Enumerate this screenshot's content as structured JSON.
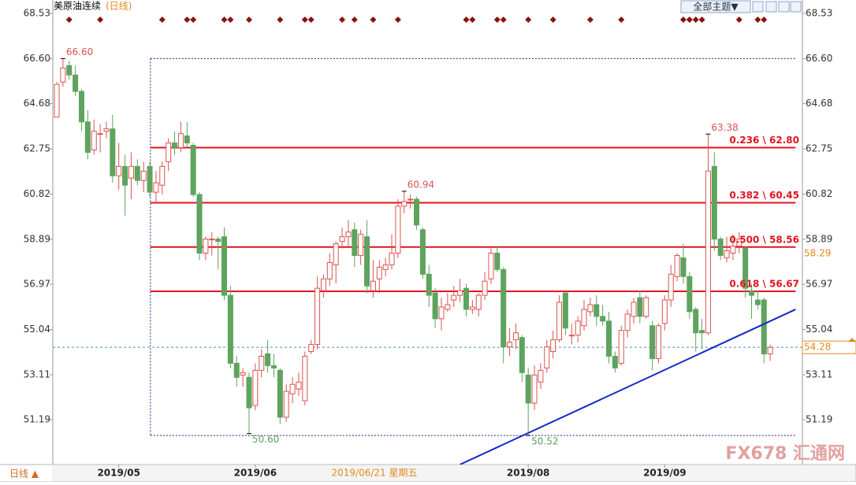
{
  "chart_data": {
    "type": "candlestick",
    "title": "美原油连续",
    "subtitle": "(日线)",
    "theme_button": "全部主题▼",
    "period_label": "日线 ▲",
    "watermark": "FX678 汇通网",
    "crosshair_date": "2019/06/21 星期五",
    "crosshair_price": 58.29,
    "current_price": 54.28,
    "up_color": "#d9534f",
    "down_color": "#5ea35e",
    "event_color": "#8b1010",
    "ylim": [
      49.28,
      69.1
    ],
    "yticks": [
      51.19,
      53.11,
      55.04,
      56.97,
      58.89,
      60.82,
      62.75,
      64.68,
      {
        "value": 66.6,
        "label": "66.60"
      },
      68.53
    ],
    "categories": [
      null,
      null,
      null,
      null,
      null,
      null,
      null,
      null,
      null,
      null,
      "2019/05",
      null,
      null,
      null,
      null,
      null,
      null,
      null,
      null,
      null,
      null,
      null,
      null,
      null,
      null,
      null,
      null,
      null,
      null,
      null,
      null,
      null,
      "2019/06",
      null,
      null,
      null,
      null,
      null,
      null,
      null,
      null,
      null,
      null,
      null,
      null,
      null,
      null,
      null,
      null,
      null,
      null,
      null,
      null,
      null,
      null,
      null,
      null,
      null,
      null,
      null,
      null,
      null,
      null,
      null,
      null,
      null,
      null,
      null,
      null,
      null,
      null,
      null,
      null,
      null,
      null,
      null,
      "2019/08",
      null,
      null,
      null,
      null,
      null,
      null,
      null,
      null,
      null,
      null,
      null,
      null,
      null,
      null,
      null,
      null,
      null,
      null,
      null,
      null,
      null,
      "2019/09",
      null,
      null,
      null,
      null,
      null,
      null,
      null,
      null,
      null,
      null,
      null,
      null,
      null,
      null,
      null,
      null,
      null,
      null
    ],
    "ohlc": [
      [
        64.1,
        65.6,
        64.1,
        65.5
      ],
      [
        65.6,
        66.6,
        65.4,
        66.2
      ],
      [
        66.3,
        66.5,
        65.7,
        65.9
      ],
      [
        65.9,
        66.3,
        65.0,
        65.2
      ],
      [
        65.2,
        65.3,
        63.5,
        63.9
      ],
      [
        63.9,
        64.4,
        62.3,
        62.6
      ],
      [
        62.7,
        64.0,
        62.5,
        63.5
      ],
      [
        63.4,
        63.8,
        62.6,
        63.4
      ],
      [
        63.5,
        63.9,
        63.2,
        63.6
      ],
      [
        63.6,
        64.2,
        61.3,
        61.6
      ],
      [
        61.6,
        63.0,
        61.0,
        62.0
      ],
      [
        62.0,
        62.5,
        59.9,
        61.2
      ],
      [
        61.5,
        62.6,
        60.6,
        62.0
      ],
      [
        62.0,
        62.3,
        61.2,
        61.4
      ],
      [
        61.4,
        62.2,
        60.9,
        61.8
      ],
      [
        62.0,
        62.2,
        60.7,
        60.9
      ],
      [
        60.9,
        61.8,
        60.5,
        61.3
      ],
      [
        61.2,
        62.2,
        60.8,
        62.0
      ],
      [
        62.2,
        63.2,
        61.8,
        63.0
      ],
      [
        63.0,
        63.5,
        62.5,
        62.8
      ],
      [
        62.8,
        63.9,
        62.6,
        63.4
      ],
      [
        63.3,
        63.9,
        62.8,
        63.0
      ],
      [
        62.9,
        63.0,
        60.7,
        60.8
      ],
      [
        60.8,
        60.9,
        58.0,
        58.3
      ],
      [
        58.3,
        59.0,
        58.0,
        58.9
      ],
      [
        58.9,
        59.2,
        58.2,
        58.9
      ],
      [
        58.9,
        59.0,
        57.6,
        58.8
      ],
      [
        59.0,
        59.4,
        56.3,
        56.5
      ],
      [
        56.5,
        56.9,
        53.4,
        53.6
      ],
      [
        53.6,
        53.9,
        52.6,
        53.0
      ],
      [
        53.1,
        53.4,
        52.6,
        53.2
      ],
      [
        53.0,
        53.2,
        50.6,
        51.7
      ],
      [
        51.8,
        53.6,
        51.6,
        53.3
      ],
      [
        53.3,
        54.2,
        53.0,
        53.9
      ],
      [
        54.0,
        54.6,
        53.2,
        53.5
      ],
      [
        53.5,
        54.0,
        53.0,
        53.4
      ],
      [
        53.3,
        53.4,
        51.0,
        51.3
      ],
      [
        51.3,
        52.7,
        51.1,
        52.4
      ],
      [
        52.3,
        53.0,
        51.9,
        52.7
      ],
      [
        52.5,
        53.2,
        52.2,
        52.8
      ],
      [
        52.0,
        54.1,
        51.8,
        53.9
      ],
      [
        54.1,
        54.6,
        54.0,
        54.4
      ],
      [
        54.4,
        57.3,
        54.2,
        56.8
      ],
      [
        56.7,
        57.4,
        56.4,
        57.2
      ],
      [
        57.2,
        58.3,
        56.9,
        57.9
      ],
      [
        57.8,
        58.8,
        57.0,
        58.7
      ],
      [
        58.8,
        59.4,
        58.5,
        59.0
      ],
      [
        59.0,
        59.7,
        58.6,
        59.2
      ],
      [
        59.3,
        59.6,
        57.7,
        58.2
      ],
      [
        58.2,
        59.3,
        57.8,
        59.1
      ],
      [
        59.0,
        59.7,
        56.6,
        56.9
      ],
      [
        56.7,
        58.0,
        56.4,
        57.1
      ],
      [
        57.2,
        58.0,
        56.6,
        57.7
      ],
      [
        57.6,
        58.1,
        57.3,
        57.8
      ],
      [
        57.8,
        59.1,
        57.6,
        58.3
      ],
      [
        58.3,
        60.6,
        58.1,
        60.3
      ],
      [
        60.3,
        60.94,
        60.0,
        60.5
      ],
      [
        60.6,
        60.8,
        60.2,
        60.6
      ],
      [
        60.6,
        60.7,
        59.3,
        59.5
      ],
      [
        59.3,
        59.4,
        57.2,
        57.4
      ],
      [
        57.4,
        57.8,
        56.0,
        56.5
      ],
      [
        56.6,
        56.8,
        55.1,
        55.5
      ],
      [
        55.5,
        56.4,
        55.0,
        56.0
      ],
      [
        55.9,
        56.6,
        55.8,
        56.1
      ],
      [
        56.3,
        56.9,
        56.0,
        56.5
      ],
      [
        56.5,
        57.2,
        56.2,
        56.7
      ],
      [
        56.8,
        57.0,
        55.6,
        55.9
      ],
      [
        55.9,
        56.3,
        55.7,
        56.0
      ],
      [
        55.9,
        56.6,
        55.6,
        56.5
      ],
      [
        56.5,
        57.5,
        56.3,
        57.1
      ],
      [
        57.2,
        58.5,
        57.0,
        58.3
      ],
      [
        58.3,
        58.6,
        57.5,
        57.6
      ],
      [
        57.6,
        57.7,
        53.6,
        54.3
      ],
      [
        54.3,
        55.1,
        53.9,
        54.5
      ],
      [
        54.6,
        55.3,
        54.2,
        54.9
      ],
      [
        54.7,
        54.8,
        52.8,
        53.2
      ],
      [
        53.1,
        53.4,
        50.52,
        51.9
      ],
      [
        51.9,
        53.5,
        51.6,
        53.1
      ],
      [
        52.8,
        53.6,
        52.5,
        53.3
      ],
      [
        53.4,
        54.6,
        53.2,
        54.3
      ],
      [
        54.1,
        55.0,
        53.8,
        54.6
      ],
      [
        54.6,
        56.5,
        54.5,
        56.2
      ],
      [
        56.6,
        56.6,
        54.8,
        55.1
      ],
      [
        54.8,
        55.3,
        54.4,
        54.8
      ],
      [
        54.8,
        55.6,
        54.5,
        55.4
      ],
      [
        55.2,
        56.3,
        55.0,
        55.9
      ],
      [
        55.8,
        56.4,
        55.6,
        56.1
      ],
      [
        56.1,
        56.5,
        55.2,
        55.6
      ],
      [
        55.6,
        56.1,
        55.2,
        55.4
      ],
      [
        55.4,
        55.8,
        53.6,
        53.9
      ],
      [
        53.9,
        54.1,
        53.2,
        53.4
      ],
      [
        53.6,
        55.2,
        53.5,
        55.0
      ],
      [
        55.0,
        55.9,
        54.7,
        55.7
      ],
      [
        55.6,
        56.4,
        55.3,
        56.2
      ],
      [
        56.4,
        56.7,
        55.3,
        55.6
      ],
      [
        55.6,
        56.5,
        55.5,
        56.4
      ],
      [
        55.2,
        55.4,
        53.3,
        53.8
      ],
      [
        53.8,
        55.3,
        53.6,
        55.2
      ],
      [
        55.3,
        56.5,
        55.0,
        56.3
      ],
      [
        56.3,
        57.8,
        56.0,
        57.4
      ],
      [
        57.3,
        58.3,
        57.1,
        58.2
      ],
      [
        58.1,
        58.7,
        57.0,
        57.3
      ],
      [
        57.3,
        57.5,
        55.5,
        55.8
      ],
      [
        55.9,
        56.0,
        54.1,
        54.9
      ],
      [
        55.0,
        55.5,
        54.2,
        54.9
      ],
      [
        54.9,
        63.38,
        54.8,
        61.8
      ],
      [
        62.0,
        62.6,
        58.4,
        58.9
      ],
      [
        58.9,
        59.0,
        58.0,
        58.2
      ],
      [
        58.1,
        59.0,
        57.9,
        58.4
      ],
      [
        58.3,
        59.1,
        58.0,
        58.6
      ],
      [
        58.6,
        59.2,
        58.3,
        58.9
      ],
      [
        58.5,
        58.6,
        56.4,
        56.8
      ],
      [
        56.7,
        57.0,
        55.5,
        56.5
      ],
      [
        56.3,
        56.7,
        55.9,
        56.1
      ],
      [
        56.3,
        56.4,
        53.6,
        54.0
      ],
      [
        54.0,
        54.4,
        53.7,
        54.28
      ]
    ],
    "annotations": [
      {
        "index": 1,
        "value": 66.6,
        "label": "66.60",
        "color": "#d9534f"
      },
      {
        "index": 105,
        "value": 63.38,
        "label": "63.38",
        "color": "#d9534f"
      },
      {
        "index": 56,
        "value": 60.94,
        "label": "60.94",
        "color": "#d9534f"
      },
      {
        "index": 31,
        "value": 50.6,
        "label": "50.60",
        "color": "#5ea35e"
      },
      {
        "index": 76,
        "value": 50.52,
        "label": "50.52",
        "color": "#5ea35e"
      }
    ],
    "fib_levels": [
      {
        "value": 62.8,
        "label": "0.236 \\ 62.80"
      },
      {
        "value": 60.45,
        "label": "0.382 \\ 60.45"
      },
      {
        "value": 58.56,
        "label": "0.500 \\ 58.56"
      },
      {
        "value": 56.67,
        "label": "0.618 \\ 56.67"
      }
    ],
    "fib_color": "#e0141e",
    "range_box": {
      "x": [
        15.1,
        119.1
      ],
      "y": [
        50.52,
        66.6
      ]
    },
    "trendline": {
      "x": [
        65,
        119.1
      ],
      "y": [
        49.28,
        55.9
      ]
    },
    "trend_color": "#1428c8",
    "event_indices": [
      2,
      7,
      17,
      21,
      22,
      27,
      28,
      31,
      36,
      40,
      41,
      46,
      48,
      51,
      55,
      66,
      67,
      71,
      72,
      76,
      80,
      86,
      91,
      101,
      102,
      103,
      104,
      110,
      113,
      114
    ]
  }
}
